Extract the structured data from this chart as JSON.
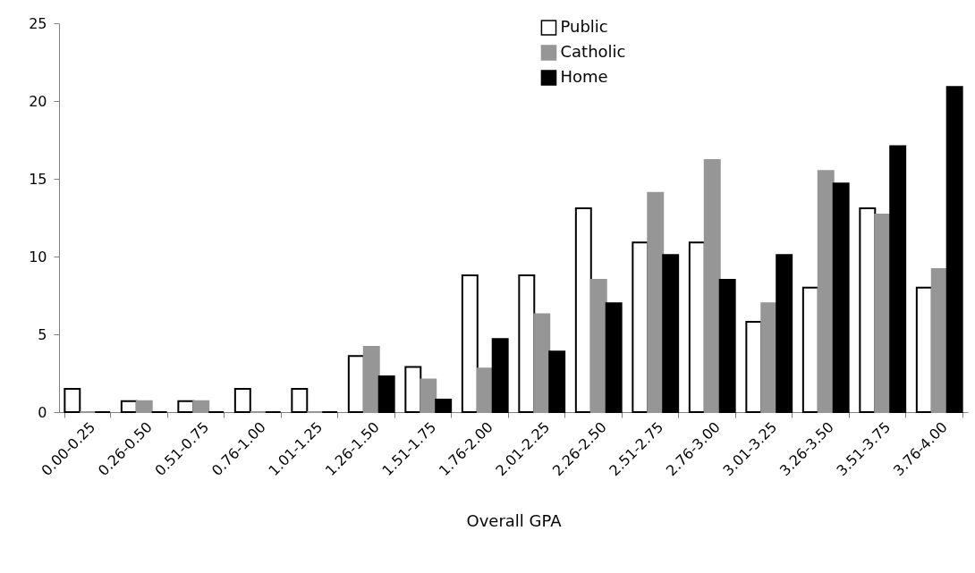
{
  "chart_data": {
    "type": "bar",
    "xlabel": "Overall GPA",
    "categories": [
      "0.00-0.25",
      "0.26-0.50",
      "0.51-0.75",
      "0.76-1.00",
      "1.01-1.25",
      "1.26-1.50",
      "1.51-1.75",
      "1.76-2.00",
      "2.01-2.25",
      "2.26-2.50",
      "2.51-2.75",
      "2.76-3.00",
      "3.01-3.25",
      "3.26-3.50",
      "3.51-3.75",
      "3.76-4.00"
    ],
    "series": [
      {
        "name": "Public",
        "color": "#ffffff",
        "values": [
          1.5,
          0.7,
          0.7,
          1.5,
          1.5,
          3.6,
          2.9,
          8.8,
          8.8,
          13.1,
          10.9,
          10.9,
          5.8,
          8.0,
          13.1,
          8.0
        ]
      },
      {
        "name": "Catholic",
        "color": "#969696",
        "values": [
          0,
          0.7,
          0.7,
          0,
          0,
          4.2,
          2.1,
          2.8,
          6.3,
          8.5,
          14.1,
          16.2,
          7.0,
          15.5,
          12.7,
          9.2
        ]
      },
      {
        "name": "Home",
        "color": "#000000",
        "values": [
          0,
          0,
          0,
          0,
          0,
          2.3,
          0.8,
          4.7,
          3.9,
          7.0,
          10.1,
          8.5,
          10.1,
          14.7,
          17.1,
          20.9
        ]
      }
    ],
    "ylim": [
      0,
      25
    ],
    "yticks": [
      0,
      5,
      10,
      15,
      20,
      25
    ],
    "grid": false,
    "legend": "top"
  }
}
